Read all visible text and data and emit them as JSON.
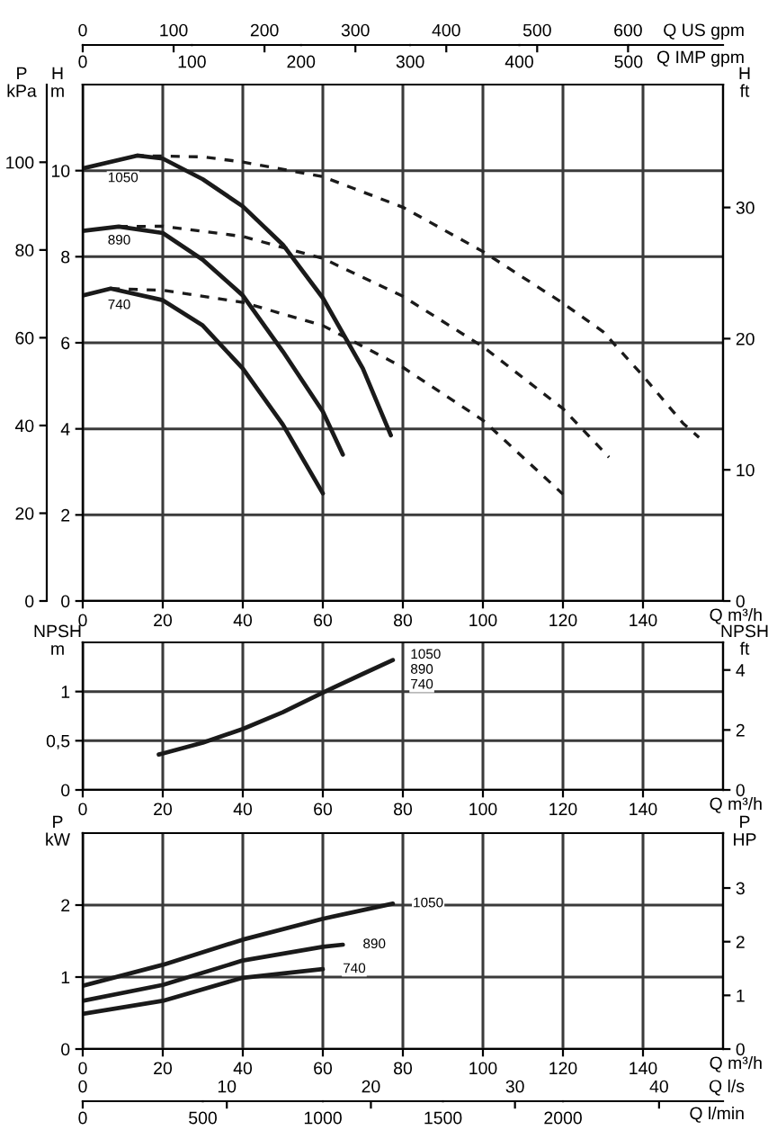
{
  "chart_data": [
    {
      "type": "line",
      "xlim": [
        0,
        160
      ],
      "xticks": [
        0,
        20,
        40,
        60,
        80,
        100,
        120,
        140
      ],
      "xlabel": "Q m³/h",
      "ylim": [
        0,
        12
      ],
      "yticks": [
        0,
        2,
        4,
        6,
        8,
        10
      ],
      "ylabel": "H\nm",
      "y2lim": [
        0,
        39.37
      ],
      "y2ticks": [
        0,
        10,
        20,
        30
      ],
      "y2label": "H\nft",
      "y3lim": [
        0,
        117.7
      ],
      "y3ticks": [
        0,
        20,
        40,
        60,
        80,
        100
      ],
      "y3label": "P\nkPa",
      "x2lim": [
        0,
        704.5
      ],
      "x2ticks": [
        0,
        100,
        200,
        300,
        400,
        500,
        600
      ],
      "x2label": "Q US gpm",
      "grid": true,
      "legend": false,
      "series": [
        {
          "color": "#1a1a1a",
          "line_style": "solid",
          "x": [
            0,
            13.6,
            20,
            30,
            40,
            50,
            60,
            70,
            77
          ],
          "values": [
            10.05,
            10.35,
            10.28,
            9.8,
            9.17,
            8.28,
            7.04,
            5.4,
            3.85
          ]
        },
        {
          "color": "#1a1a1a",
          "line_style": "solid",
          "x": [
            0,
            9,
            20,
            30,
            40,
            50,
            60,
            65
          ],
          "values": [
            8.6,
            8.7,
            8.55,
            7.93,
            7.1,
            5.8,
            4.4,
            3.4
          ]
        },
        {
          "color": "#1a1a1a",
          "line_style": "solid",
          "x": [
            0,
            7,
            20,
            30,
            40,
            50,
            60
          ],
          "values": [
            7.1,
            7.26,
            6.99,
            6.4,
            5.4,
            4.1,
            2.5
          ]
        },
        {
          "color": "#1a1a1a",
          "line_style": "dashed",
          "x": [
            13,
            30,
            40,
            60,
            80,
            100,
            120,
            130,
            140,
            150,
            154
          ],
          "values": [
            10.35,
            10.32,
            10.2,
            9.86,
            9.15,
            8.12,
            6.92,
            6.26,
            5.23,
            4.13,
            3.8
          ]
        },
        {
          "color": "#1a1a1a",
          "line_style": "dashed",
          "x": [
            9,
            20,
            40,
            60,
            80,
            100,
            120,
            131.5
          ],
          "values": [
            8.7,
            8.71,
            8.47,
            7.96,
            7.08,
            5.91,
            4.47,
            3.34
          ]
        },
        {
          "color": "#1a1a1a",
          "line_style": "dashed",
          "x": [
            7,
            20,
            40,
            60,
            80,
            100,
            120
          ],
          "values": [
            7.26,
            7.22,
            6.94,
            6.4,
            5.43,
            4.2,
            2.48
          ]
        }
      ],
      "annotations": [
        "1050",
        "890",
        "740",
        "Q IMP gpm",
        "0",
        "100",
        "200",
        "300",
        "400",
        "500"
      ]
    },
    {
      "type": "line",
      "xlim": [
        0,
        160
      ],
      "xticks": [
        0,
        20,
        40,
        60,
        80,
        100,
        120,
        140
      ],
      "xlabel": "Q m³/h",
      "ylim": [
        0,
        1.5
      ],
      "yticks": [
        0,
        {
          "value": 0.5,
          "label": "0,5"
        },
        1
      ],
      "ylabel": "NPSH\nm",
      "y2lim": [
        0,
        4.921
      ],
      "y2ticks": [
        0,
        2,
        4
      ],
      "y2label": "NPSH\nft",
      "grid": true,
      "legend": false,
      "series": [
        {
          "color": "#1a1a1a",
          "line_style": "solid",
          "x": [
            19,
            20,
            30,
            40,
            50,
            60,
            70,
            77.5
          ],
          "values": [
            0.36,
            0.37,
            0.48,
            0.62,
            0.79,
            0.99,
            1.18,
            1.32
          ]
        }
      ],
      "annotations": [
        "1050",
        "890",
        "740"
      ]
    },
    {
      "type": "line",
      "xlim": [
        0,
        160
      ],
      "xticks": [
        0,
        20,
        40,
        60,
        80,
        100,
        120,
        140
      ],
      "xlabel": "Q m³/h",
      "ylim": [
        0,
        3
      ],
      "yticks": [
        0,
        1,
        2
      ],
      "ylabel": "P\nkW",
      "y2lim": [
        0,
        4.023
      ],
      "y2ticks": [
        0,
        1,
        2,
        3
      ],
      "y2label": "P\nHP",
      "x2lim": [
        0,
        44.44
      ],
      "x2ticks": [
        0,
        10,
        20,
        30,
        40
      ],
      "x2label": "Q l/s",
      "grid": true,
      "legend": false,
      "series": [
        {
          "color": "#1a1a1a",
          "line_style": "solid",
          "x": [
            0,
            20,
            40,
            60,
            77.5
          ],
          "values": [
            0.88,
            1.17,
            1.52,
            1.81,
            2.02
          ]
        },
        {
          "color": "#1a1a1a",
          "line_style": "solid",
          "x": [
            0,
            20,
            40,
            60,
            65
          ],
          "values": [
            0.67,
            0.89,
            1.23,
            1.42,
            1.45
          ]
        },
        {
          "color": "#1a1a1a",
          "line_style": "solid",
          "x": [
            0,
            20,
            40,
            60
          ],
          "values": [
            0.49,
            0.67,
            0.99,
            1.11
          ]
        }
      ],
      "annotations": [
        "1050",
        "890",
        "740",
        "Q l/min",
        "0",
        "500",
        "1000",
        "1500",
        "2000"
      ]
    }
  ]
}
